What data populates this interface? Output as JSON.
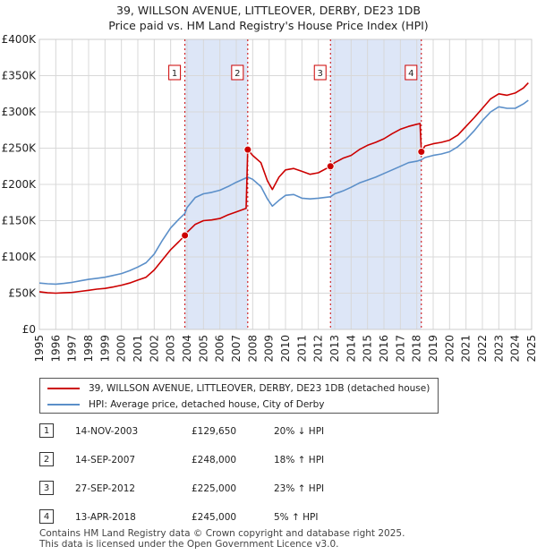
{
  "title": {
    "line1": "39, WILLSON AVENUE, LITTLEOVER, DERBY, DE23 1DB",
    "line2": "Price paid vs. HM Land Registry's House Price Index (HPI)"
  },
  "legend": {
    "red_label": "39, WILLSON AVENUE, LITTLEOVER, DERBY, DE23 1DB (detached house)",
    "blue_label": "HPI: Average price, detached house, City of Derby"
  },
  "sales": [
    {
      "num": "1",
      "date": "14-NOV-2003",
      "price": "£129,650",
      "hpi": "20% ↓ HPI"
    },
    {
      "num": "2",
      "date": "14-SEP-2007",
      "price": "£248,000",
      "hpi": "18% ↑ HPI"
    },
    {
      "num": "3",
      "date": "27-SEP-2012",
      "price": "£225,000",
      "hpi": "23% ↑ HPI"
    },
    {
      "num": "4",
      "date": "13-APR-2018",
      "price": "£245,000",
      "hpi": "5% ↑ HPI"
    }
  ],
  "footer": {
    "line1": "Contains HM Land Registry data © Crown copyright and database right 2025.",
    "line2": "This data is licensed under the Open Government Licence v3.0."
  },
  "colors": {
    "red": "#cc0000",
    "blue": "#5b8fc9",
    "shade": "#dde6f7",
    "grid": "#d8d8d8",
    "marker_border": "#cc0000"
  },
  "chart_data": {
    "type": "line",
    "title": "39, WILLSON AVENUE, LITTLEOVER, DERBY, DE23 1DB — Price paid vs. HM Land Registry's House Price Index (HPI)",
    "xlabel": "",
    "ylabel": "",
    "xlim": [
      1995,
      2025
    ],
    "ylim": [
      0,
      400000
    ],
    "x_ticks": [
      "1995",
      "1996",
      "1997",
      "1998",
      "1999",
      "2000",
      "2001",
      "2002",
      "2003",
      "2004",
      "2005",
      "2006",
      "2007",
      "2008",
      "2009",
      "2010",
      "2011",
      "2012",
      "2013",
      "2014",
      "2015",
      "2016",
      "2017",
      "2018",
      "2019",
      "2020",
      "2021",
      "2022",
      "2023",
      "2024",
      "2025"
    ],
    "y_ticks": [
      {
        "value": 0,
        "label": "£0"
      },
      {
        "value": 50000,
        "label": "£50K"
      },
      {
        "value": 100000,
        "label": "£100K"
      },
      {
        "value": 150000,
        "label": "£150K"
      },
      {
        "value": 200000,
        "label": "£200K"
      },
      {
        "value": 250000,
        "label": "£250K"
      },
      {
        "value": 300000,
        "label": "£300K"
      },
      {
        "value": 350000,
        "label": "£350K"
      },
      {
        "value": 400000,
        "label": "£400K"
      }
    ],
    "grid": true,
    "shaded_periods": [
      [
        2003.87,
        2007.7
      ],
      [
        2012.74,
        2018.28
      ]
    ],
    "sale_markers": [
      {
        "label": "1",
        "x": 2003.87,
        "y": 129650
      },
      {
        "label": "2",
        "x": 2007.7,
        "y": 248000
      },
      {
        "label": "3",
        "x": 2012.74,
        "y": 225000
      },
      {
        "label": "4",
        "x": 2018.28,
        "y": 245000
      }
    ],
    "series": [
      {
        "name": "39, WILLSON AVENUE, LITTLEOVER, DERBY, DE23 1DB (detached house)",
        "color": "#cc0000",
        "points": [
          [
            1995.0,
            52000
          ],
          [
            1995.5,
            50500
          ],
          [
            1996.0,
            50000
          ],
          [
            1996.5,
            50500
          ],
          [
            1997.0,
            51000
          ],
          [
            1997.5,
            52500
          ],
          [
            1998.0,
            54000
          ],
          [
            1998.5,
            55500
          ],
          [
            1999.0,
            56500
          ],
          [
            1999.5,
            58500
          ],
          [
            2000.0,
            61000
          ],
          [
            2000.5,
            64000
          ],
          [
            2001.0,
            68000
          ],
          [
            2001.5,
            72000
          ],
          [
            2002.0,
            82000
          ],
          [
            2002.5,
            96000
          ],
          [
            2003.0,
            110000
          ],
          [
            2003.5,
            121000
          ],
          [
            2003.87,
            129650
          ],
          [
            2004.0,
            134000
          ],
          [
            2004.5,
            145000
          ],
          [
            2005.0,
            150000
          ],
          [
            2005.5,
            151000
          ],
          [
            2006.0,
            153000
          ],
          [
            2006.5,
            158000
          ],
          [
            2007.0,
            162000
          ],
          [
            2007.6,
            167000
          ],
          [
            2007.7,
            248000
          ],
          [
            2008.0,
            240000
          ],
          [
            2008.5,
            230000
          ],
          [
            2008.9,
            205000
          ],
          [
            2009.2,
            193000
          ],
          [
            2009.6,
            210000
          ],
          [
            2010.0,
            220000
          ],
          [
            2010.5,
            222000
          ],
          [
            2011.0,
            218000
          ],
          [
            2011.5,
            214000
          ],
          [
            2012.0,
            216000
          ],
          [
            2012.74,
            225000
          ],
          [
            2013.0,
            230000
          ],
          [
            2013.5,
            236000
          ],
          [
            2014.0,
            240000
          ],
          [
            2014.5,
            248000
          ],
          [
            2015.0,
            254000
          ],
          [
            2015.5,
            258000
          ],
          [
            2016.0,
            263000
          ],
          [
            2016.5,
            270000
          ],
          [
            2017.0,
            276000
          ],
          [
            2017.5,
            280000
          ],
          [
            2018.0,
            283000
          ],
          [
            2018.2,
            284000
          ],
          [
            2018.28,
            245000
          ],
          [
            2018.5,
            253000
          ],
          [
            2019.0,
            256000
          ],
          [
            2019.5,
            258000
          ],
          [
            2020.0,
            261000
          ],
          [
            2020.5,
            268000
          ],
          [
            2021.0,
            280000
          ],
          [
            2021.5,
            292000
          ],
          [
            2022.0,
            305000
          ],
          [
            2022.5,
            318000
          ],
          [
            2023.0,
            325000
          ],
          [
            2023.5,
            323000
          ],
          [
            2024.0,
            326000
          ],
          [
            2024.5,
            333000
          ],
          [
            2024.8,
            340000
          ]
        ]
      },
      {
        "name": "HPI: Average price, detached house, City of Derby",
        "color": "#5b8fc9",
        "points": [
          [
            1995.0,
            64000
          ],
          [
            1995.5,
            63000
          ],
          [
            1996.0,
            62500
          ],
          [
            1996.5,
            63500
          ],
          [
            1997.0,
            65000
          ],
          [
            1997.5,
            67000
          ],
          [
            1998.0,
            69000
          ],
          [
            1998.5,
            70500
          ],
          [
            1999.0,
            72000
          ],
          [
            1999.5,
            74500
          ],
          [
            2000.0,
            77000
          ],
          [
            2000.5,
            81000
          ],
          [
            2001.0,
            86000
          ],
          [
            2001.5,
            92000
          ],
          [
            2002.0,
            104000
          ],
          [
            2002.5,
            123000
          ],
          [
            2003.0,
            140000
          ],
          [
            2003.5,
            152000
          ],
          [
            2003.87,
            160000
          ],
          [
            2004.0,
            168000
          ],
          [
            2004.5,
            182000
          ],
          [
            2005.0,
            187000
          ],
          [
            2005.5,
            189000
          ],
          [
            2006.0,
            192000
          ],
          [
            2006.5,
            197000
          ],
          [
            2007.0,
            203000
          ],
          [
            2007.7,
            210000
          ],
          [
            2008.0,
            207000
          ],
          [
            2008.5,
            197000
          ],
          [
            2008.9,
            180000
          ],
          [
            2009.2,
            170000
          ],
          [
            2009.6,
            178000
          ],
          [
            2010.0,
            185000
          ],
          [
            2010.5,
            186000
          ],
          [
            2011.0,
            181000
          ],
          [
            2011.5,
            180000
          ],
          [
            2012.0,
            181000
          ],
          [
            2012.74,
            183000
          ],
          [
            2013.0,
            187000
          ],
          [
            2013.5,
            191000
          ],
          [
            2014.0,
            196000
          ],
          [
            2014.5,
            202000
          ],
          [
            2015.0,
            206000
          ],
          [
            2015.5,
            210000
          ],
          [
            2016.0,
            215000
          ],
          [
            2016.5,
            220000
          ],
          [
            2017.0,
            225000
          ],
          [
            2017.5,
            230000
          ],
          [
            2018.0,
            232000
          ],
          [
            2018.28,
            234000
          ],
          [
            2018.5,
            237000
          ],
          [
            2019.0,
            240000
          ],
          [
            2019.5,
            242000
          ],
          [
            2020.0,
            245000
          ],
          [
            2020.5,
            252000
          ],
          [
            2021.0,
            262000
          ],
          [
            2021.5,
            274000
          ],
          [
            2022.0,
            288000
          ],
          [
            2022.5,
            300000
          ],
          [
            2023.0,
            307000
          ],
          [
            2023.5,
            305000
          ],
          [
            2024.0,
            305000
          ],
          [
            2024.5,
            311000
          ],
          [
            2024.8,
            316000
          ]
        ]
      }
    ]
  }
}
